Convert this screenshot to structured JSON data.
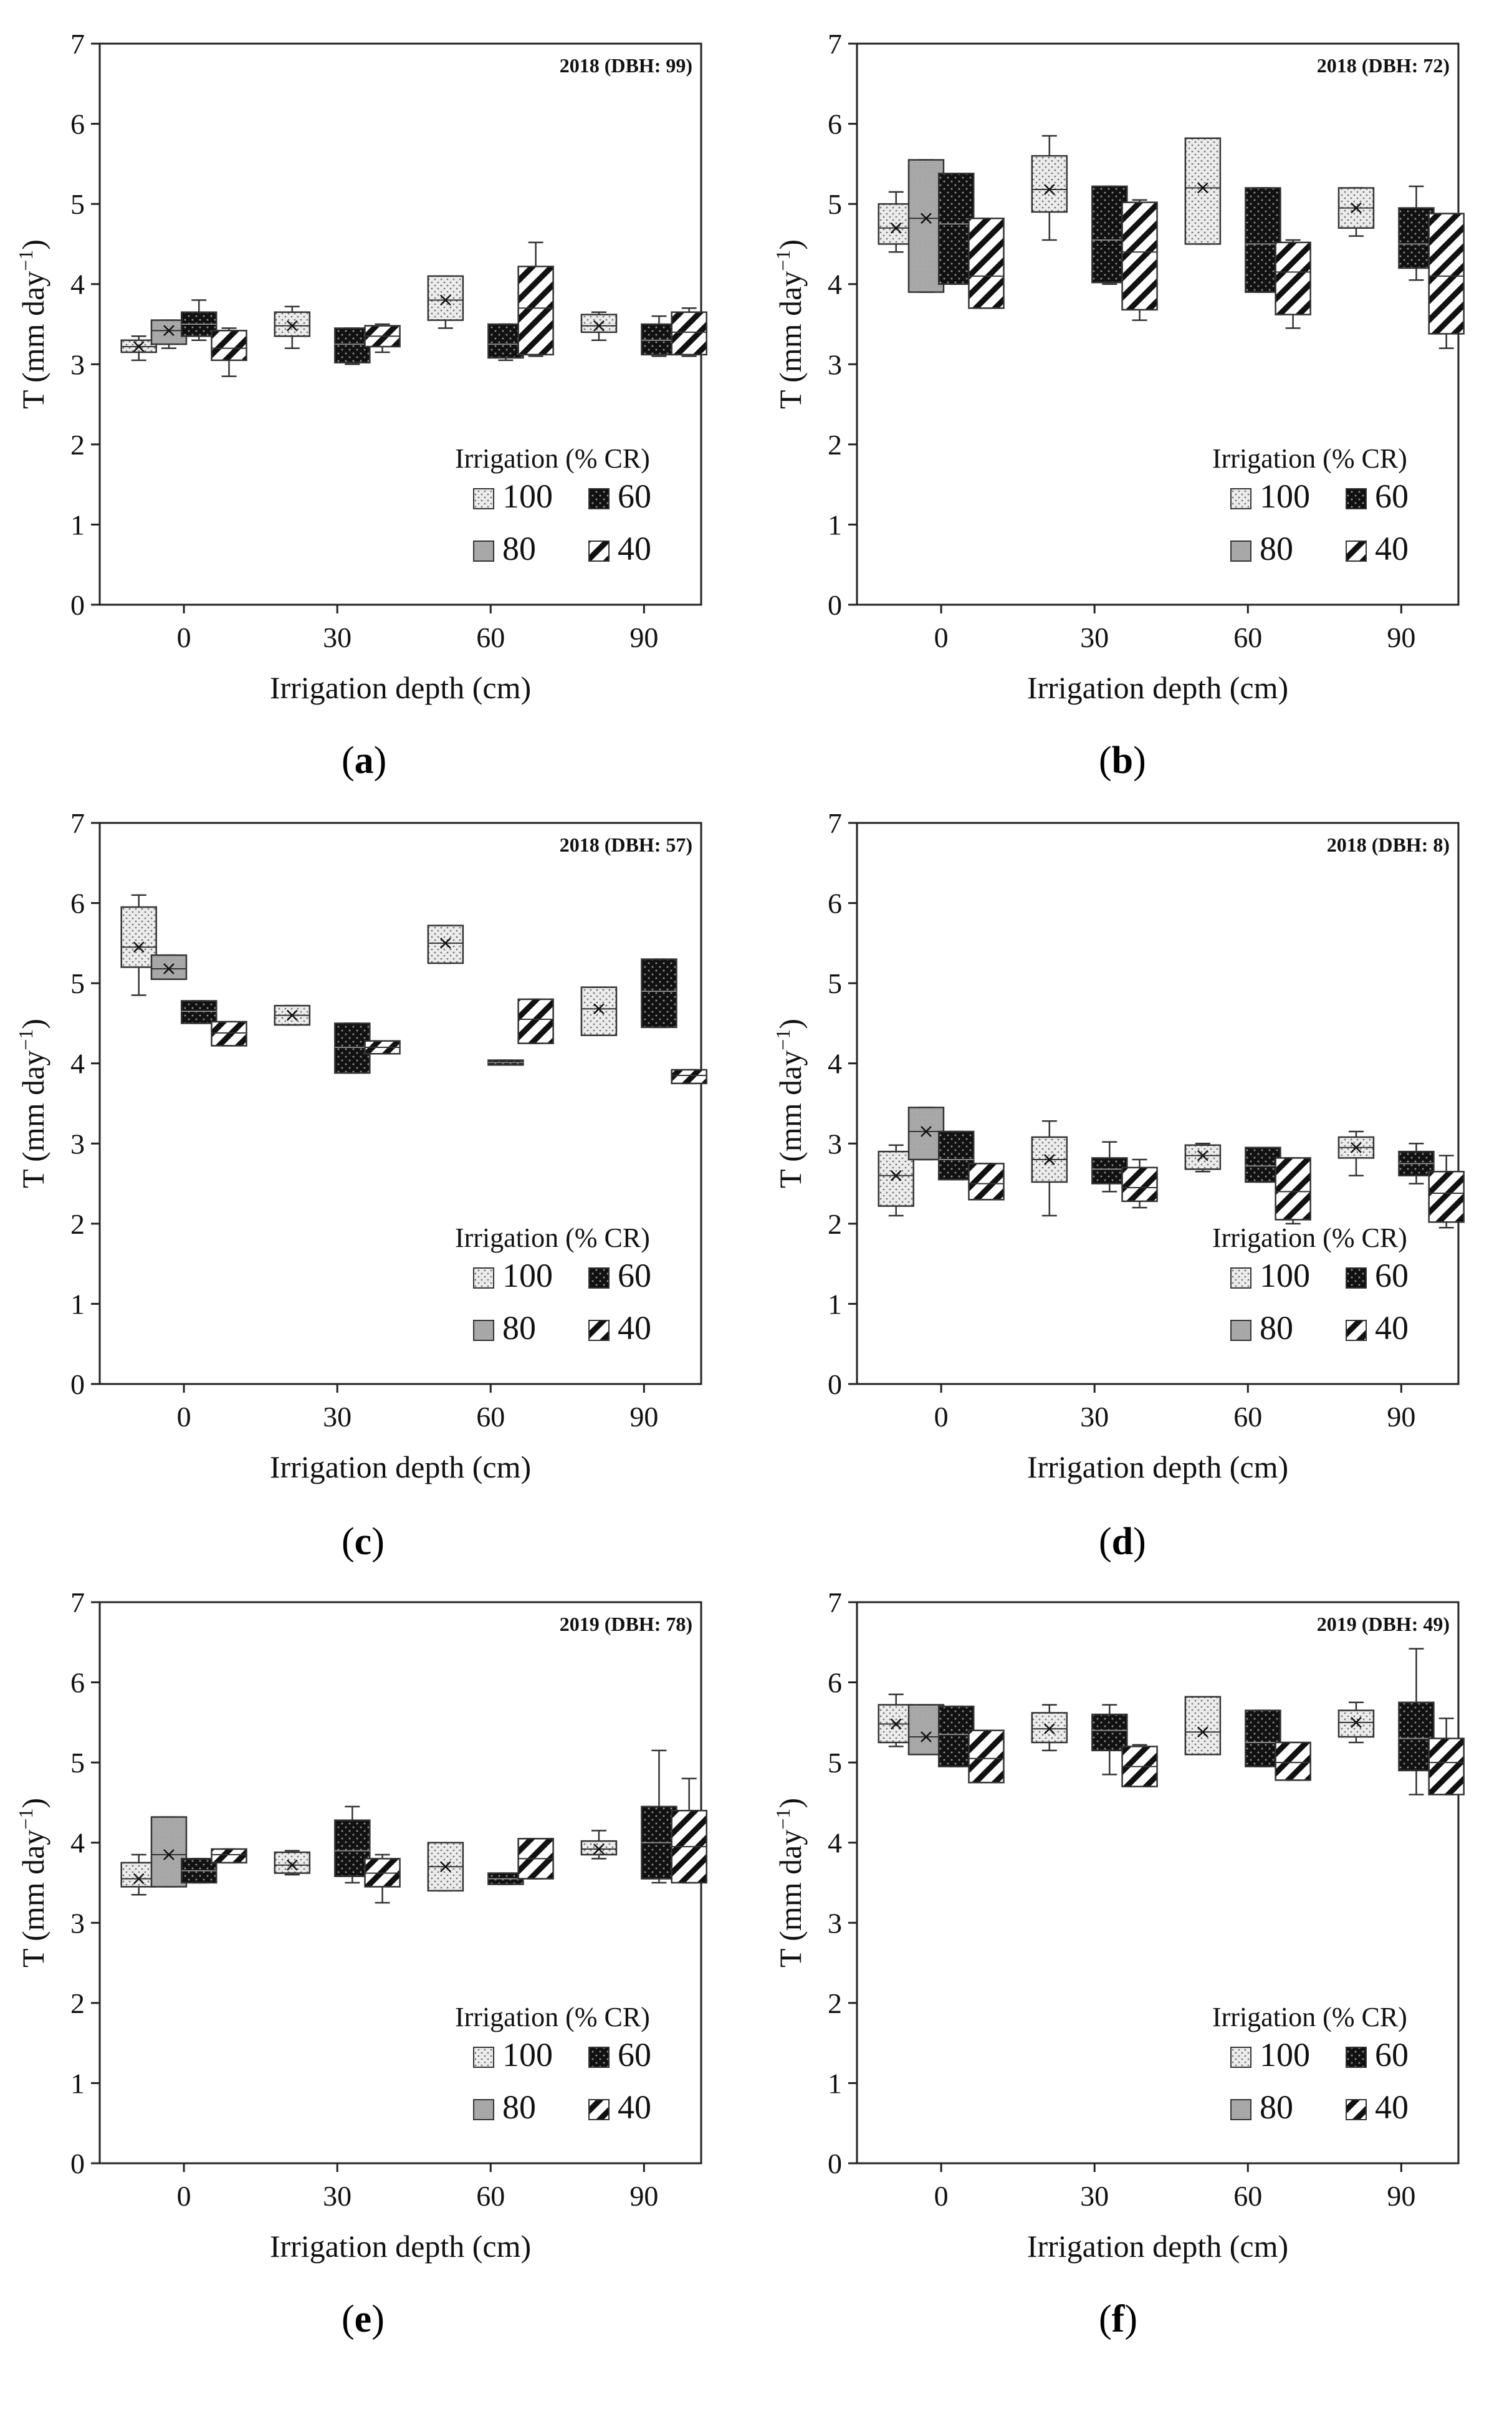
{
  "figure": {
    "y_label": "T (mm day",
    "y_label_sup": "−1",
    "y_label_close": ")",
    "x_label": "Irrigation depth (cm)",
    "legend_title": "Irrigation (% CR)",
    "legend_items": [
      "100",
      "60",
      "80",
      "40"
    ],
    "colors": {
      "box_100": "#e4e4e4",
      "box_80": "#a6a6a6",
      "box_60": "#111111",
      "box_40": "#ffffff",
      "axis": "#222222"
    }
  },
  "chart_data": [
    {
      "type": "box",
      "panel": "(a)",
      "panel_letter": "a",
      "title": "2018 (DBH: 99)",
      "xlabel": "Irrigation depth (cm)",
      "ylabel": "T (mm day−1)",
      "ylim": [
        0,
        7
      ],
      "yticks": [
        "0",
        "1",
        "2",
        "3",
        "4",
        "5",
        "6",
        "7"
      ],
      "categories": [
        "0",
        "30",
        "60",
        "90"
      ],
      "legend": "bottom-right",
      "series": [
        {
          "name": "100",
          "boxes": [
            [
              3.05,
              3.15,
              3.22,
              3.3,
              3.35
            ],
            [
              3.2,
              3.35,
              3.48,
              3.65,
              3.72
            ],
            [
              3.45,
              3.55,
              3.8,
              4.1,
              4.1
            ],
            [
              3.3,
              3.4,
              3.48,
              3.62,
              3.65
            ]
          ]
        },
        {
          "name": "80",
          "boxes": [
            [
              3.2,
              3.25,
              3.42,
              3.55,
              3.55
            ],
            null,
            null,
            null
          ]
        },
        {
          "name": "60",
          "boxes": [
            [
              3.3,
              3.35,
              3.5,
              3.65,
              3.8
            ],
            [
              3.0,
              3.02,
              3.25,
              3.45,
              3.45
            ],
            [
              3.05,
              3.08,
              3.25,
              3.5,
              3.5
            ],
            [
              3.1,
              3.12,
              3.3,
              3.5,
              3.6
            ]
          ]
        },
        {
          "name": "40",
          "boxes": [
            [
              2.85,
              3.05,
              3.2,
              3.42,
              3.45
            ],
            [
              3.15,
              3.22,
              3.35,
              3.48,
              3.5
            ],
            [
              3.1,
              3.12,
              3.7,
              4.22,
              4.52
            ],
            [
              3.1,
              3.12,
              3.4,
              3.65,
              3.7
            ]
          ]
        }
      ]
    },
    {
      "type": "box",
      "panel": "(b)",
      "panel_letter": "b",
      "title": "2018 (DBH: 72)",
      "xlabel": "Irrigation depth (cm)",
      "ylabel": "T (mm day−1)",
      "ylim": [
        0,
        7
      ],
      "yticks": [
        "0",
        "1",
        "2",
        "3",
        "4",
        "5",
        "6",
        "7"
      ],
      "categories": [
        "0",
        "30",
        "60",
        "90"
      ],
      "legend": "bottom-right",
      "series": [
        {
          "name": "100",
          "boxes": [
            [
              4.4,
              4.5,
              4.7,
              5.0,
              5.15
            ],
            [
              4.55,
              4.9,
              5.18,
              5.6,
              5.85
            ],
            [
              4.5,
              4.5,
              5.2,
              5.82,
              5.82
            ],
            [
              4.6,
              4.7,
              4.95,
              5.2,
              5.2
            ]
          ]
        },
        {
          "name": "80",
          "boxes": [
            [
              3.9,
              3.9,
              4.82,
              5.55,
              5.55
            ],
            null,
            null,
            null
          ]
        },
        {
          "name": "60",
          "boxes": [
            [
              4.0,
              4.0,
              4.75,
              5.38,
              5.38
            ],
            [
              4.0,
              4.02,
              4.55,
              5.22,
              5.22
            ],
            [
              3.9,
              3.9,
              4.5,
              5.2,
              5.2
            ],
            [
              4.05,
              4.2,
              4.5,
              4.95,
              5.22
            ]
          ]
        },
        {
          "name": "40",
          "boxes": [
            [
              3.7,
              3.7,
              4.1,
              4.82,
              4.82
            ],
            [
              3.55,
              3.68,
              4.4,
              5.02,
              5.05
            ],
            [
              3.45,
              3.62,
              4.15,
              4.52,
              4.55
            ],
            [
              3.2,
              3.38,
              4.1,
              4.88,
              4.88
            ]
          ]
        }
      ]
    },
    {
      "type": "box",
      "panel": "(c)",
      "panel_letter": "c",
      "title": "2018 (DBH: 57)",
      "xlabel": "Irrigation depth (cm)",
      "ylabel": "T (mm day−1)",
      "ylim": [
        0,
        7
      ],
      "yticks": [
        "0",
        "1",
        "2",
        "3",
        "4",
        "5",
        "6",
        "7"
      ],
      "categories": [
        "0",
        "30",
        "60",
        "90"
      ],
      "legend": "bottom-right",
      "series": [
        {
          "name": "100",
          "boxes": [
            [
              4.85,
              5.2,
              5.45,
              5.95,
              6.1
            ],
            [
              4.48,
              4.48,
              4.6,
              4.72,
              4.72
            ],
            [
              5.25,
              5.25,
              5.5,
              5.72,
              5.72
            ],
            [
              4.35,
              4.35,
              4.68,
              4.95,
              4.95
            ]
          ]
        },
        {
          "name": "80",
          "boxes": [
            [
              5.05,
              5.05,
              5.18,
              5.35,
              5.35
            ],
            null,
            null,
            null
          ]
        },
        {
          "name": "60",
          "boxes": [
            [
              4.5,
              4.5,
              4.65,
              4.78,
              4.78
            ],
            [
              3.88,
              3.88,
              4.2,
              4.5,
              4.5
            ],
            [
              3.98,
              3.98,
              4.01,
              4.04,
              4.04
            ],
            [
              4.45,
              4.45,
              4.9,
              5.3,
              5.3
            ]
          ]
        },
        {
          "name": "40",
          "boxes": [
            [
              4.22,
              4.22,
              4.38,
              4.52,
              4.52
            ],
            [
              4.12,
              4.12,
              4.2,
              4.28,
              4.28
            ],
            [
              4.25,
              4.25,
              4.55,
              4.8,
              4.8
            ],
            [
              3.75,
              3.75,
              3.85,
              3.92,
              3.92
            ]
          ]
        }
      ]
    },
    {
      "type": "box",
      "panel": "(d)",
      "panel_letter": "d",
      "title": "2018 (DBH: 8)",
      "xlabel": "Irrigation depth (cm)",
      "ylabel": "T (mm day−1)",
      "ylim": [
        0,
        7
      ],
      "yticks": [
        "0",
        "1",
        "2",
        "3",
        "4",
        "5",
        "6",
        "7"
      ],
      "categories": [
        "0",
        "30",
        "60",
        "90"
      ],
      "legend": "bottom-right",
      "series": [
        {
          "name": "100",
          "boxes": [
            [
              2.1,
              2.22,
              2.6,
              2.9,
              2.98
            ],
            [
              2.1,
              2.52,
              2.8,
              3.08,
              3.28
            ],
            [
              2.65,
              2.68,
              2.85,
              2.98,
              3.0
            ],
            [
              2.6,
              2.82,
              2.95,
              3.08,
              3.15
            ]
          ]
        },
        {
          "name": "80",
          "boxes": [
            [
              2.8,
              2.8,
              3.15,
              3.45,
              3.45
            ],
            null,
            null,
            null
          ]
        },
        {
          "name": "60",
          "boxes": [
            [
              2.55,
              2.55,
              2.8,
              3.15,
              3.15
            ],
            [
              2.4,
              2.5,
              2.68,
              2.82,
              3.02
            ],
            [
              2.52,
              2.52,
              2.72,
              2.95,
              2.95
            ],
            [
              2.5,
              2.6,
              2.75,
              2.9,
              3.0
            ]
          ]
        },
        {
          "name": "40",
          "boxes": [
            [
              2.3,
              2.3,
              2.5,
              2.75,
              2.75
            ],
            [
              2.2,
              2.28,
              2.45,
              2.7,
              2.8
            ],
            [
              2.0,
              2.05,
              2.4,
              2.82,
              2.82
            ],
            [
              1.95,
              2.02,
              2.38,
              2.65,
              2.85
            ]
          ]
        }
      ]
    },
    {
      "type": "box",
      "panel": "(e)",
      "panel_letter": "e",
      "title": "2019 (DBH: 78)",
      "xlabel": "Irrigation depth (cm)",
      "ylabel": "T (mm day−1)",
      "ylim": [
        0,
        7
      ],
      "yticks": [
        "0",
        "1",
        "2",
        "3",
        "4",
        "5",
        "6",
        "7"
      ],
      "categories": [
        "0",
        "30",
        "60",
        "90"
      ],
      "legend": "bottom-right",
      "series": [
        {
          "name": "100",
          "boxes": [
            [
              3.35,
              3.45,
              3.55,
              3.75,
              3.85
            ],
            [
              3.6,
              3.62,
              3.72,
              3.88,
              3.9
            ],
            [
              3.4,
              3.4,
              3.7,
              4.0,
              4.0
            ],
            [
              3.8,
              3.85,
              3.92,
              4.02,
              4.15
            ]
          ]
        },
        {
          "name": "80",
          "boxes": [
            [
              3.45,
              3.45,
              3.85,
              4.32,
              4.32
            ],
            null,
            null,
            null
          ]
        },
        {
          "name": "60",
          "boxes": [
            [
              3.5,
              3.5,
              3.65,
              3.8,
              3.8
            ],
            [
              3.5,
              3.58,
              3.9,
              4.28,
              4.45
            ],
            [
              3.48,
              3.48,
              3.55,
              3.62,
              3.62
            ],
            [
              3.5,
              3.55,
              4.0,
              4.45,
              5.15
            ]
          ]
        },
        {
          "name": "40",
          "boxes": [
            [
              3.75,
              3.75,
              3.85,
              3.92,
              3.92
            ],
            [
              3.25,
              3.45,
              3.62,
              3.8,
              3.85
            ],
            [
              3.55,
              3.55,
              3.8,
              4.05,
              4.05
            ],
            [
              3.5,
              3.5,
              3.95,
              4.4,
              4.8
            ]
          ]
        }
      ]
    },
    {
      "type": "box",
      "panel": "(f)",
      "panel_letter": "f",
      "title": "2019 (DBH: 49)",
      "xlabel": "Irrigation depth (cm)",
      "ylabel": "T (mm day−1)",
      "ylim": [
        0,
        7
      ],
      "yticks": [
        "0",
        "1",
        "2",
        "3",
        "4",
        "5",
        "6",
        "7"
      ],
      "categories": [
        "0",
        "30",
        "60",
        "90"
      ],
      "legend": "bottom-right",
      "series": [
        {
          "name": "100",
          "boxes": [
            [
              5.2,
              5.25,
              5.48,
              5.72,
              5.85
            ],
            [
              5.15,
              5.25,
              5.42,
              5.62,
              5.72
            ],
            [
              5.1,
              5.1,
              5.38,
              5.82,
              5.82
            ],
            [
              5.25,
              5.32,
              5.5,
              5.65,
              5.75
            ]
          ]
        },
        {
          "name": "80",
          "boxes": [
            [
              5.1,
              5.1,
              5.32,
              5.72,
              5.72
            ],
            null,
            null,
            null
          ]
        },
        {
          "name": "60",
          "boxes": [
            [
              4.95,
              4.95,
              5.35,
              5.7,
              5.7
            ],
            [
              4.85,
              5.15,
              5.4,
              5.6,
              5.72
            ],
            [
              4.95,
              4.95,
              5.25,
              5.65,
              5.65
            ],
            [
              4.6,
              4.9,
              5.3,
              5.75,
              6.42
            ]
          ]
        },
        {
          "name": "40",
          "boxes": [
            [
              4.75,
              4.75,
              5.05,
              5.4,
              5.4
            ],
            [
              4.7,
              4.7,
              4.95,
              5.2,
              5.22
            ],
            [
              4.78,
              4.78,
              5.0,
              5.25,
              5.25
            ],
            [
              4.6,
              4.6,
              5.0,
              5.3,
              5.55
            ]
          ]
        }
      ]
    }
  ]
}
